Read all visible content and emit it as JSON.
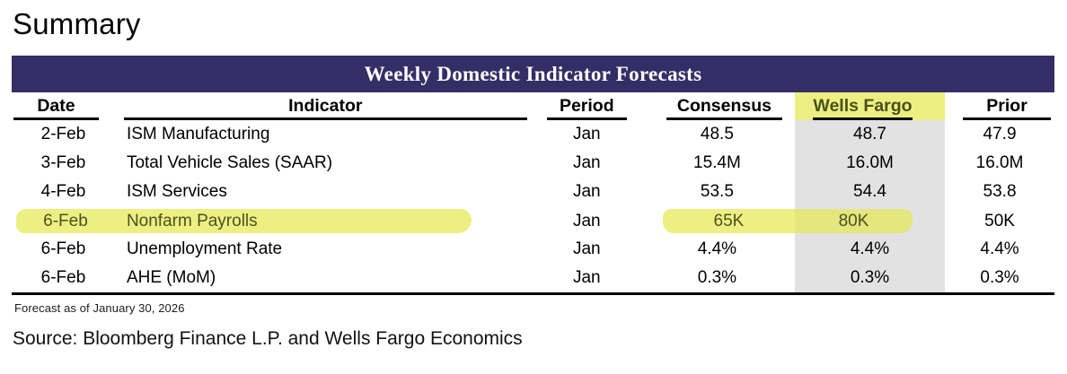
{
  "page_title": "Summary",
  "table": {
    "title": "Weekly Domestic Indicator Forecasts",
    "columns": [
      "Date",
      "Indicator",
      "Period",
      "Consensus",
      "Wells Fargo",
      "Prior"
    ],
    "rows": [
      {
        "date": "2-Feb",
        "indicator": "ISM Manufacturing",
        "period": "Jan",
        "consensus": "48.5",
        "wells_fargo": "48.7",
        "prior": "47.9",
        "highlighted": false
      },
      {
        "date": "3-Feb",
        "indicator": "Total Vehicle Sales (SAAR)",
        "period": "Jan",
        "consensus": "15.4M",
        "wells_fargo": "16.0M",
        "prior": "16.0M",
        "highlighted": false
      },
      {
        "date": "4-Feb",
        "indicator": "ISM Services",
        "period": "Jan",
        "consensus": "53.5",
        "wells_fargo": "54.4",
        "prior": "53.8",
        "highlighted": false
      },
      {
        "date": "6-Feb",
        "indicator": "Nonfarm Payrolls",
        "period": "Jan",
        "consensus": "65K",
        "wells_fargo": "80K",
        "prior": "50K",
        "highlighted": true
      },
      {
        "date": "6-Feb",
        "indicator": "Unemployment Rate",
        "period": "Jan",
        "consensus": "4.4%",
        "wells_fargo": "4.4%",
        "prior": "4.4%",
        "highlighted": false
      },
      {
        "date": "6-Feb",
        "indicator": "AHE (MoM)",
        "period": "Jan",
        "consensus": "0.3%",
        "wells_fargo": "0.3%",
        "prior": "0.3%",
        "highlighted": false
      }
    ],
    "footnote": "Forecast as of January 30, 2026"
  },
  "source_line": "Source: Bloomberg Finance L.P. and Wells Fargo Economics",
  "colors": {
    "title_bar_bg": "#352e66",
    "title_bar_text": "#fdfdfd",
    "highlight_yellow": "#edef82",
    "highlight_yellow_on_gray": "#e4e67e",
    "highlight_text": "#4c5220",
    "wells_fargo_column_bg": "#e2e2e2"
  }
}
